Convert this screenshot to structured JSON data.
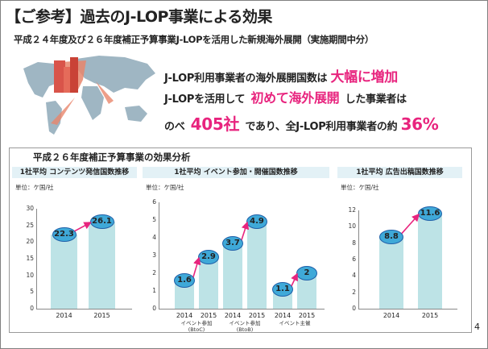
{
  "title": "【ご参考】過去のJ-LOP事業による効果",
  "subtitle": "平成２４年度及び２６年度補正予算事業J-LOPを活用した新規海外展開（実施期間中分）",
  "statement": {
    "line1_a": "J-LOP利用事業者の海外展開国数は",
    "line1_hl": "大幅に増加",
    "line2_a": "J-LOPを活用して",
    "line2_hl": "初めて海外展開",
    "line2_b": "した事業者は",
    "line3_a": "のべ",
    "line3_hl1": "405社",
    "line3_b": "であり、全J-LOP利用事業者の約",
    "line3_hl2": "36%"
  },
  "analysis_title": "平成２６年度補正予算事業の効果分析",
  "page_number": "4",
  "colors": {
    "bar": "#bde3e6",
    "bubble": "#3fa9d8",
    "bubble_border": "#1f5fa8",
    "arrow": "#e8247e",
    "header_bg": "#e3f1f6"
  },
  "chart_data": [
    {
      "type": "bar",
      "title": "1社平均 コンテンツ発信国数推移",
      "unit": "単位：ケ国/社",
      "categories": [
        "2014",
        "2015"
      ],
      "values": [
        22.3,
        26.1
      ],
      "ylim": [
        0,
        30
      ],
      "yticks": [
        0,
        5,
        10,
        15,
        20,
        25,
        30
      ]
    },
    {
      "type": "bar",
      "title": "1社平均 イベント参加・開催国数推移",
      "unit": "単位：ケ国/社",
      "groups": [
        {
          "label": "イベント参加\n(BtoC)",
          "categories": [
            "2014",
            "2015"
          ],
          "values": [
            1.6,
            2.9
          ]
        },
        {
          "label": "イベント参加\n(BtoB)",
          "categories": [
            "2014",
            "2015"
          ],
          "values": [
            3.7,
            4.9
          ]
        },
        {
          "label": "イベント主催",
          "categories": [
            "2014",
            "2015"
          ],
          "values": [
            1.1,
            2.0
          ]
        }
      ],
      "ylim": [
        0,
        6
      ],
      "yticks": [
        0,
        1,
        2,
        3,
        4,
        5,
        6
      ]
    },
    {
      "type": "bar",
      "title": "1社平均 広告出稿国数推移",
      "unit": "単位：ケ国/社",
      "categories": [
        "2014",
        "2015"
      ],
      "values": [
        8.8,
        11.6
      ],
      "ylim": [
        0,
        12
      ],
      "yticks": [
        0,
        2,
        4,
        6,
        8,
        10,
        12
      ]
    }
  ]
}
